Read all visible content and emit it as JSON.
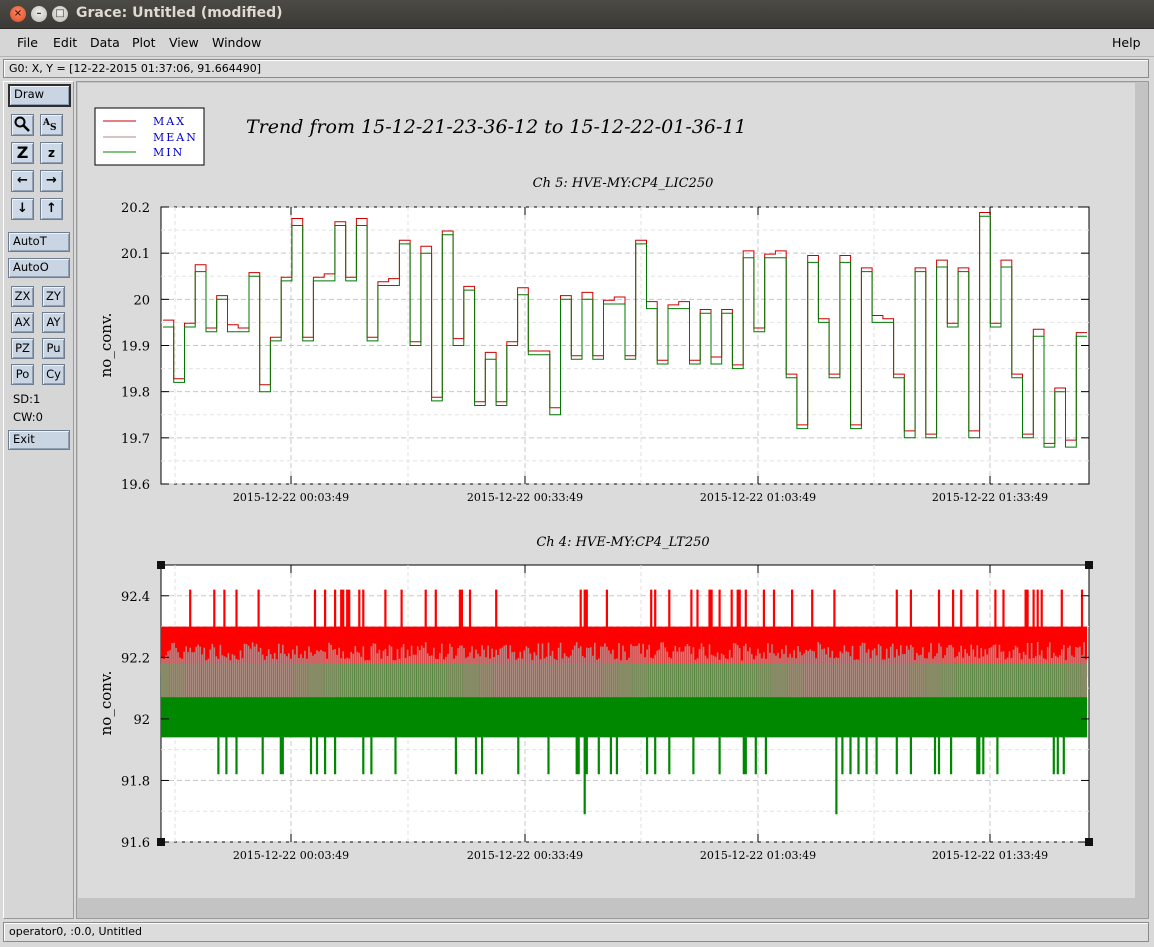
{
  "window": {
    "title": "Grace: Untitled (modified)"
  },
  "menu": {
    "file": "File",
    "edit": "Edit",
    "data": "Data",
    "plot": "Plot",
    "view": "View",
    "window": "Window",
    "help": "Help"
  },
  "locator": "G0: X, Y = [12-22-2015 01:37:06, 91.664490]",
  "tools": {
    "draw": "Draw",
    "autot": "AutoT",
    "autoo": "AutoO",
    "zx": "ZX",
    "zy": "ZY",
    "ax": "AX",
    "ay": "AY",
    "pz": "PZ",
    "pu": "Pu",
    "po": "Po",
    "cy": "Cy",
    "sd": "SD:1",
    "cw": "CW:0",
    "exit": "Exit",
    "icons": [
      "zoom-icon",
      "autoscale-icon",
      "zoom-out-icon",
      "zoom-in-icon",
      "scroll-left-icon",
      "scroll-right-icon",
      "scroll-down-icon",
      "scroll-up-icon"
    ]
  },
  "status": "operator0, :0.0, Untitled",
  "plot": {
    "title": "Trend from 15-12-21-23-36-12 to 15-12-22-01-36-11",
    "legend": [
      {
        "label": "MAX",
        "color": "#cc0000"
      },
      {
        "label": "MEAN",
        "color": "#b08a8a"
      },
      {
        "label": "MIN",
        "color": "#008800"
      }
    ]
  },
  "chart_data": [
    {
      "type": "line",
      "title": "Ch 5: HVE-MY:CP4_LIC250",
      "ylabel": "no_conv.",
      "xlabel": "",
      "ylim": [
        19.6,
        20.2
      ],
      "yticks": [
        "19.6",
        "19.7",
        "19.8",
        "19.9",
        "20",
        "20.1",
        "20.2"
      ],
      "xticks": [
        "2015-12-22 00:03:49",
        "2015-12-22 00:33:49",
        "2015-12-22 01:03:49",
        "2015-12-22 01:33:49"
      ],
      "grid": true,
      "series": [
        {
          "name": "MAX",
          "color": "#cc0000"
        },
        {
          "name": "MIN",
          "color": "#007700"
        }
      ],
      "x_range_minutes": [
        0,
        120
      ],
      "step_values": [
        19.94,
        19.82,
        19.94,
        20.06,
        19.93,
        20.0,
        19.93,
        19.93,
        20.05,
        19.8,
        19.91,
        20.04,
        20.16,
        19.91,
        20.04,
        20.04,
        20.16,
        20.04,
        20.16,
        19.91,
        20.03,
        20.03,
        20.12,
        19.9,
        20.1,
        19.78,
        20.14,
        19.9,
        20.02,
        19.77,
        19.87,
        19.77,
        19.9,
        20.01,
        19.88,
        19.88,
        19.75,
        20.0,
        19.87,
        20.0,
        19.87,
        19.99,
        19.99,
        19.87,
        20.12,
        19.98,
        19.86,
        19.98,
        19.98,
        19.86,
        19.97,
        19.86,
        19.97,
        19.85,
        20.09,
        19.93,
        20.09,
        20.09,
        19.83,
        19.72,
        20.08,
        19.95,
        19.83,
        20.08,
        19.72,
        20.06,
        19.95,
        19.95,
        19.83,
        19.7,
        20.06,
        19.7,
        20.07,
        19.94,
        20.06,
        19.7,
        20.18,
        19.94,
        20.07,
        19.83,
        19.7,
        19.92,
        19.68,
        19.8,
        19.68,
        19.92
      ]
    },
    {
      "type": "line",
      "title": "Ch 4: HVE-MY:CP4_LT250",
      "ylabel": "no_conv.",
      "xlabel": "",
      "ylim": [
        91.6,
        92.5
      ],
      "yticks": [
        "91.6",
        "91.8",
        "92",
        "92.2",
        "92.4"
      ],
      "xticks": [
        "2015-12-22 00:03:49",
        "2015-12-22 00:33:49",
        "2015-12-22 01:03:49",
        "2015-12-22 01:33:49"
      ],
      "grid": true,
      "series": [
        {
          "name": "MAX",
          "color": "#ff0000",
          "typical_range": [
            92.16,
            92.3
          ],
          "spikes_to": 92.42
        },
        {
          "name": "MEAN",
          "color": "#bb8d8d",
          "typical_range": [
            92.07,
            92.22
          ]
        },
        {
          "name": "MIN",
          "color": "#008800",
          "typical_range": [
            91.94,
            92.18
          ],
          "dips_to": 91.82,
          "min_value": 91.69
        }
      ]
    }
  ]
}
